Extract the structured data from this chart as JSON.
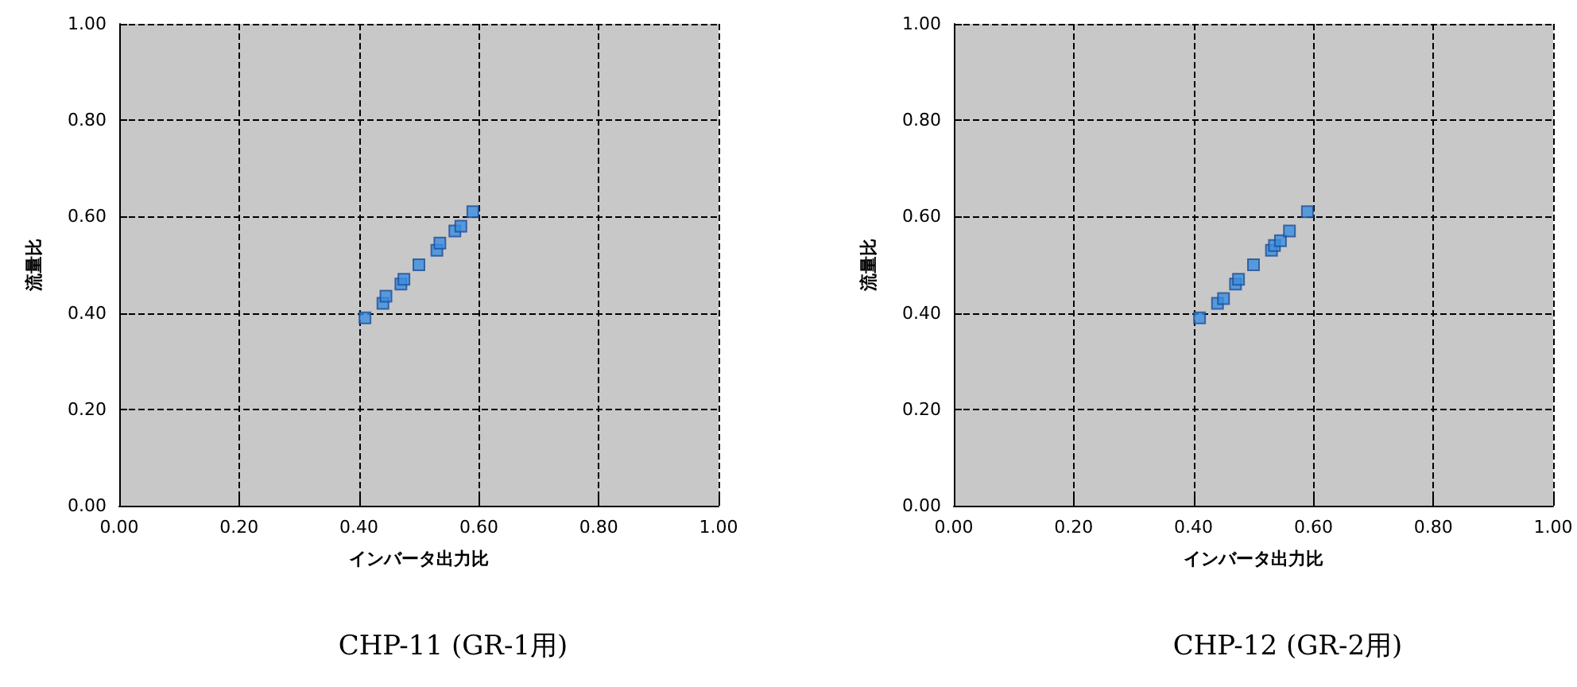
{
  "chart_data": [
    {
      "type": "scatter",
      "title": "CHP-11 (GR-1用)",
      "xlabel": "インバータ出力比",
      "ylabel": "流量比",
      "marker": "square",
      "grid": true,
      "line_style": "dashed",
      "x": [
        0.41,
        0.44,
        0.445,
        0.47,
        0.475,
        0.5,
        0.53,
        0.535,
        0.56,
        0.57,
        0.59
      ],
      "series": [
        {
          "color": "#3a8ee0",
          "values": [
            0.39,
            0.42,
            0.435,
            0.46,
            0.47,
            0.5,
            0.53,
            0.545,
            0.57,
            0.58,
            0.61
          ]
        }
      ],
      "xlim": [
        0,
        1
      ],
      "ylim": [
        0,
        1
      ],
      "xticks": [
        {
          "value": 0,
          "label": "0.00"
        },
        {
          "value": 0.2,
          "label": "0.20"
        },
        {
          "value": 0.4,
          "label": "0.40"
        },
        {
          "value": 0.6,
          "label": "0.60"
        },
        {
          "value": 0.8,
          "label": "0.80"
        },
        {
          "value": 1,
          "label": "1.00"
        }
      ],
      "yticks": [
        {
          "value": 0,
          "label": "0.00"
        },
        {
          "value": 0.2,
          "label": "0.20"
        },
        {
          "value": 0.4,
          "label": "0.40"
        },
        {
          "value": 0.6,
          "label": "0.60"
        },
        {
          "value": 0.8,
          "label": "0.80"
        },
        {
          "value": 1,
          "label": "1.00"
        }
      ]
    },
    {
      "type": "scatter",
      "title": "CHP-12 (GR-2用)",
      "xlabel": "インバータ出力比",
      "ylabel": "流量比",
      "marker": "square",
      "grid": true,
      "line_style": "dashed",
      "x": [
        0.41,
        0.44,
        0.45,
        0.47,
        0.475,
        0.5,
        0.53,
        0.535,
        0.545,
        0.56,
        0.59
      ],
      "series": [
        {
          "color": "#3a8ee0",
          "values": [
            0.39,
            0.42,
            0.43,
            0.46,
            0.47,
            0.5,
            0.53,
            0.54,
            0.55,
            0.57,
            0.61
          ]
        }
      ],
      "xlim": [
        0,
        1
      ],
      "ylim": [
        0,
        1
      ],
      "xticks": [
        {
          "value": 0,
          "label": "0.00"
        },
        {
          "value": 0.2,
          "label": "0.20"
        },
        {
          "value": 0.4,
          "label": "0.40"
        },
        {
          "value": 0.6,
          "label": "0.60"
        },
        {
          "value": 0.8,
          "label": "0.80"
        },
        {
          "value": 1,
          "label": "1.00"
        }
      ],
      "yticks": [
        {
          "value": 0,
          "label": "0.00"
        },
        {
          "value": 0.2,
          "label": "0.20"
        },
        {
          "value": 0.4,
          "label": "0.40"
        },
        {
          "value": 0.6,
          "label": "0.60"
        },
        {
          "value": 0.8,
          "label": "0.80"
        },
        {
          "value": 1,
          "label": "1.00"
        }
      ]
    }
  ]
}
